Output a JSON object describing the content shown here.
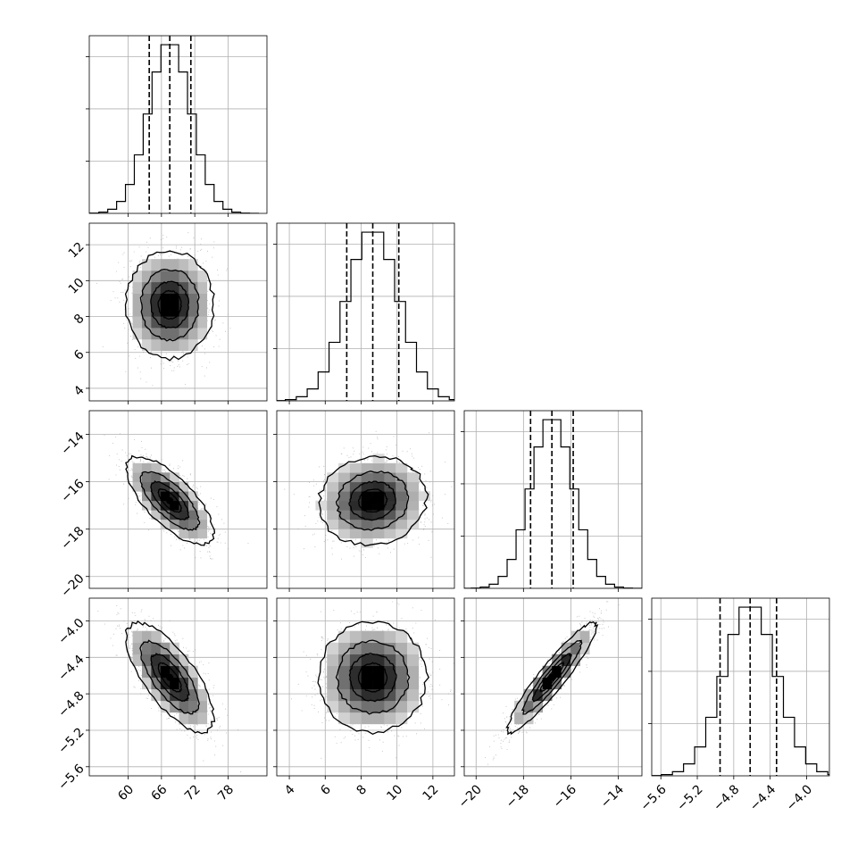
{
  "chart_data": {
    "type": "corner",
    "title": "",
    "colors": {
      "line": "#000000",
      "grid": "#b0b0b0",
      "density_max": "#000000",
      "density_min": "#ffffff"
    },
    "grid": true,
    "params": [
      {
        "index": 0,
        "mean": 67.5,
        "sd": 3.8,
        "range": [
          53,
          85
        ],
        "ticks": [
          60,
          66,
          72,
          78
        ],
        "tick_labels": [
          "60",
          "66",
          "72",
          "78"
        ],
        "quantiles": [
          63.8,
          67.5,
          71.3
        ]
      },
      {
        "index": 1,
        "mean": 8.65,
        "sd": 1.45,
        "range": [
          3.3,
          13.2
        ],
        "ticks": [
          4,
          6,
          8,
          10,
          12
        ],
        "tick_labels": [
          "4",
          "6",
          "8",
          "10",
          "12"
        ],
        "quantiles": [
          7.2,
          8.65,
          10.1
        ]
      },
      {
        "index": 2,
        "mean": -16.8,
        "sd": 0.9,
        "range": [
          -20.5,
          -13.0
        ],
        "ticks": [
          -20,
          -18,
          -16,
          -14
        ],
        "tick_labels": [
          "−20",
          "−18",
          "−16",
          "−14"
        ],
        "quantiles": [
          -17.7,
          -16.8,
          -15.9
        ]
      },
      {
        "index": 3,
        "mean": -4.62,
        "sd": 0.29,
        "range": [
          -5.7,
          -3.75
        ],
        "ticks": [
          -5.6,
          -5.2,
          -4.8,
          -4.4,
          -4.0
        ],
        "tick_labels": [
          "−5.6",
          "−5.2",
          "−4.8",
          "−4.4",
          "−4.0"
        ],
        "quantiles": [
          -4.95,
          -4.62,
          -4.33
        ]
      }
    ],
    "correlations": [
      {
        "row": 1,
        "col": 0,
        "r": 0.0
      },
      {
        "row": 2,
        "col": 0,
        "r": -0.72
      },
      {
        "row": 2,
        "col": 1,
        "r": 0.08
      },
      {
        "row": 3,
        "col": 0,
        "r": -0.72
      },
      {
        "row": 3,
        "col": 1,
        "r": 0.0
      },
      {
        "row": 3,
        "col": 2,
        "r": 0.93
      }
    ],
    "contour_levels_sigma": [
      0.5,
      1.0,
      1.5,
      2.0
    ]
  }
}
